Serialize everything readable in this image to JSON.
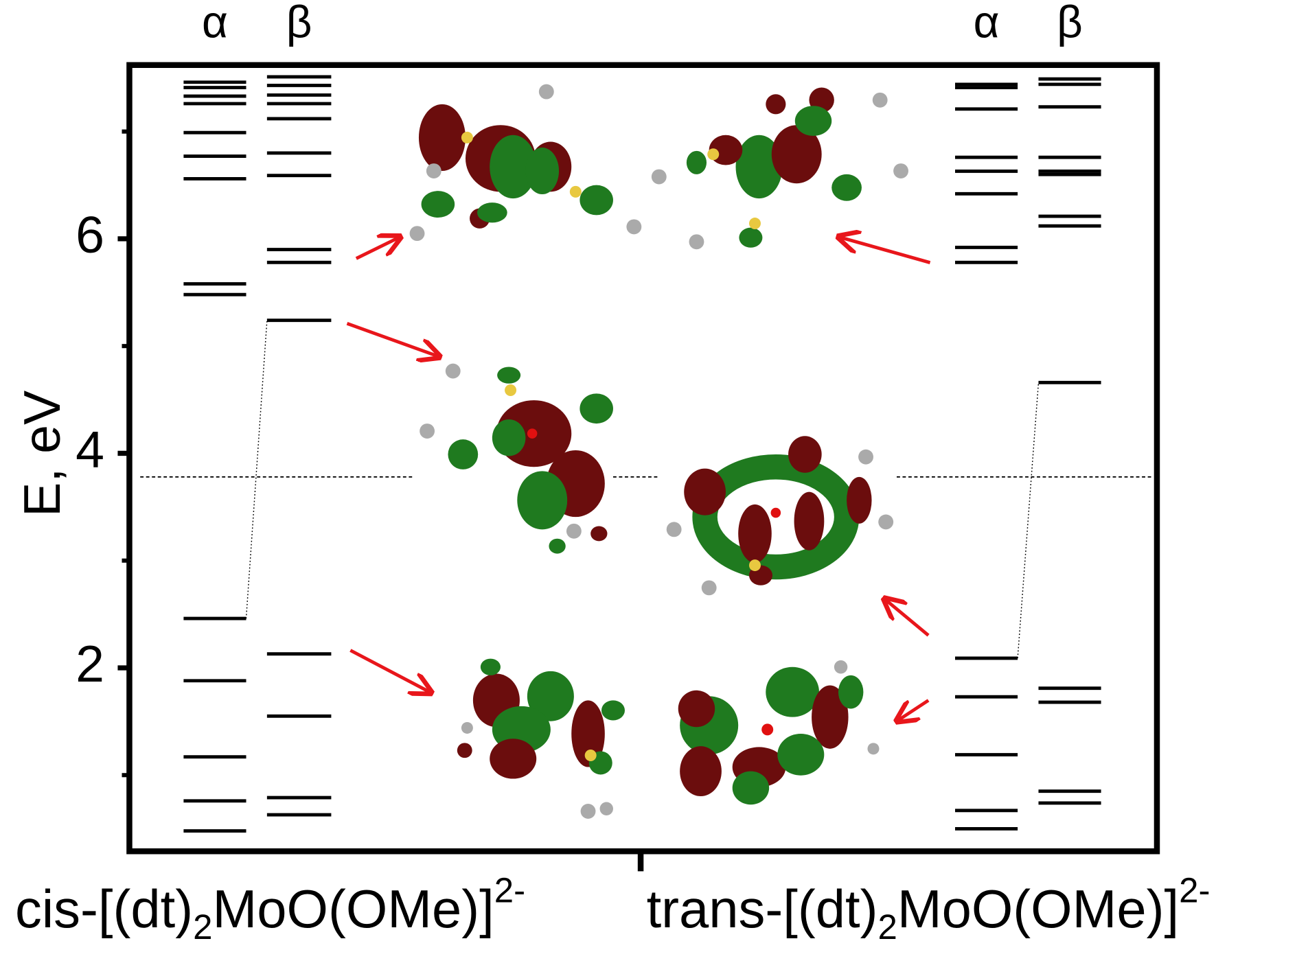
{
  "chart_data": {
    "type": "energy_levels",
    "y_label": "E, eV",
    "ylim": [
      0.29,
      7.62
    ],
    "yticks": [
      2,
      4,
      6
    ],
    "minor_yticks": [
      1,
      3,
      5,
      7
    ],
    "reference_line": 3.78,
    "groups": [
      {
        "label": {
          "text": "cis-[(dt)",
          "sub": "2",
          "mid": "MoO(OMe)]",
          "sup": "2-"
        },
        "series": [
          {
            "name": "α",
            "color": "#000000",
            "values": [
              7.46,
              7.41,
              7.33,
              7.26,
              6.99,
              6.77,
              6.56,
              5.58,
              5.48,
              2.46,
              1.88,
              1.17,
              0.76,
              0.48
            ]
          },
          {
            "name": "β",
            "color": "#000000",
            "values": [
              7.51,
              7.43,
              7.34,
              7.26,
              7.12,
              6.8,
              6.59,
              5.9,
              5.78,
              5.24,
              2.13,
              1.55,
              0.79,
              0.63
            ]
          }
        ]
      },
      {
        "label": {
          "text": "trans-[(dt)",
          "sub": "2",
          "mid": "MoO(OMe)]",
          "sup": "2-"
        },
        "series": [
          {
            "name": "α",
            "color": "#000000",
            "values": [
              7.44,
              7.41,
              7.21,
              6.76,
              6.63,
              6.42,
              5.92,
              5.78,
              2.09,
              1.73,
              1.19,
              0.67,
              0.5
            ]
          },
          {
            "name": "β",
            "color": "#000000",
            "values": [
              7.49,
              7.44,
              7.23,
              6.76,
              6.63,
              6.6,
              6.21,
              6.12,
              4.66,
              1.81,
              1.68,
              0.85,
              0.74
            ]
          }
        ]
      }
    ]
  }
}
